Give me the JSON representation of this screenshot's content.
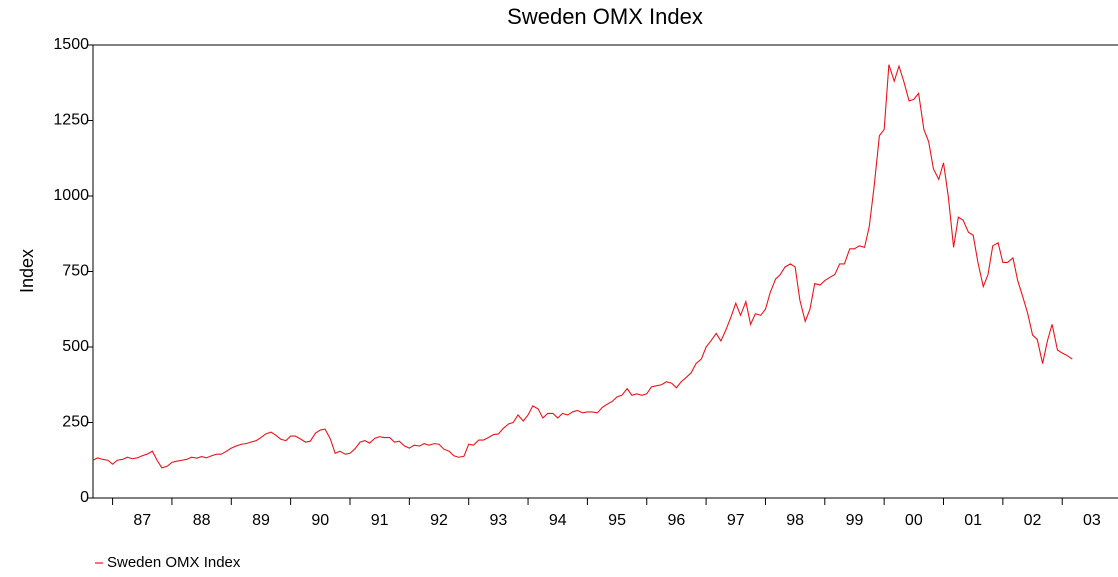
{
  "chart_data": {
    "type": "line",
    "title": "Sweden OMX Index",
    "y_label": "Index",
    "legend": "bottom-left",
    "grid": false,
    "xlim": [
      1986.67,
      2003.94
    ],
    "ylim": [
      0,
      1500
    ],
    "yticks": [
      0,
      250,
      500,
      750,
      1000,
      1250,
      1500
    ],
    "xticks": [
      {
        "value": 1987,
        "label": "87"
      },
      {
        "value": 1988,
        "label": "88"
      },
      {
        "value": 1989,
        "label": "89"
      },
      {
        "value": 1990,
        "label": "90"
      },
      {
        "value": 1991,
        "label": "91"
      },
      {
        "value": 1992,
        "label": "92"
      },
      {
        "value": 1993,
        "label": "93"
      },
      {
        "value": 1994,
        "label": "94"
      },
      {
        "value": 1995,
        "label": "95"
      },
      {
        "value": 1996,
        "label": "96"
      },
      {
        "value": 1997,
        "label": "97"
      },
      {
        "value": 1998,
        "label": "98"
      },
      {
        "value": 1999,
        "label": "99"
      },
      {
        "value": 2000,
        "label": "00"
      },
      {
        "value": 2001,
        "label": "01"
      },
      {
        "value": 2002,
        "label": "02"
      },
      {
        "value": 2003,
        "label": "03"
      }
    ],
    "x": [
      1986.67,
      1986.75,
      1986.83,
      1986.92,
      1987,
      1987.08,
      1987.17,
      1987.25,
      1987.33,
      1987.42,
      1987.5,
      1987.58,
      1987.67,
      1987.75,
      1987.83,
      1987.92,
      1988,
      1988.08,
      1988.17,
      1988.25,
      1988.33,
      1988.42,
      1988.5,
      1988.58,
      1988.67,
      1988.75,
      1988.83,
      1988.92,
      1989,
      1989.08,
      1989.17,
      1989.25,
      1989.33,
      1989.42,
      1989.5,
      1989.58,
      1989.67,
      1989.75,
      1989.83,
      1989.92,
      1990,
      1990.08,
      1990.17,
      1990.25,
      1990.33,
      1990.42,
      1990.5,
      1990.58,
      1990.67,
      1990.75,
      1990.83,
      1990.92,
      1991,
      1991.08,
      1991.17,
      1991.25,
      1991.33,
      1991.42,
      1991.5,
      1991.58,
      1991.67,
      1991.75,
      1991.83,
      1991.92,
      1992,
      1992.08,
      1992.17,
      1992.25,
      1992.33,
      1992.42,
      1992.5,
      1992.58,
      1992.67,
      1992.75,
      1992.83,
      1992.92,
      1993,
      1993.08,
      1993.17,
      1993.25,
      1993.33,
      1993.42,
      1993.5,
      1993.58,
      1993.67,
      1993.75,
      1993.83,
      1993.92,
      1994,
      1994.08,
      1994.17,
      1994.25,
      1994.33,
      1994.42,
      1994.5,
      1994.58,
      1994.67,
      1994.75,
      1994.83,
      1994.92,
      1995,
      1995.08,
      1995.17,
      1995.25,
      1995.33,
      1995.42,
      1995.5,
      1995.58,
      1995.67,
      1995.75,
      1995.83,
      1995.92,
      1996,
      1996.08,
      1996.17,
      1996.25,
      1996.33,
      1996.42,
      1996.5,
      1996.58,
      1996.67,
      1996.75,
      1996.83,
      1996.92,
      1997,
      1997.08,
      1997.17,
      1997.25,
      1997.33,
      1997.42,
      1997.5,
      1997.58,
      1997.67,
      1997.75,
      1997.83,
      1997.92,
      1998,
      1998.08,
      1998.17,
      1998.25,
      1998.33,
      1998.42,
      1998.5,
      1998.58,
      1998.67,
      1998.75,
      1998.83,
      1998.92,
      1999,
      1999.08,
      1999.17,
      1999.25,
      1999.33,
      1999.42,
      1999.5,
      1999.58,
      1999.67,
      1999.75,
      1999.83,
      1999.92,
      2000,
      2000.08,
      2000.17,
      2000.25,
      2000.33,
      2000.42,
      2000.5,
      2000.58,
      2000.67,
      2000.75,
      2000.83,
      2000.92,
      2001,
      2001.08,
      2001.17,
      2001.25,
      2001.33,
      2001.42,
      2001.5,
      2001.58,
      2001.67,
      2001.75,
      2001.83,
      2001.92,
      2002,
      2002.08,
      2002.17,
      2002.25,
      2002.33,
      2002.42,
      2002.5,
      2002.58,
      2002.67,
      2002.75,
      2002.83,
      2002.92,
      2003,
      2003.08,
      2003.17
    ],
    "series": [
      {
        "name": "Sweden OMX Index",
        "color": "#e8141c",
        "values": [
          125,
          133,
          128,
          125,
          112,
          125,
          128,
          135,
          130,
          133,
          140,
          145,
          155,
          125,
          100,
          105,
          118,
          122,
          125,
          128,
          135,
          132,
          137,
          133,
          140,
          145,
          145,
          155,
          165,
          172,
          178,
          180,
          185,
          190,
          200,
          212,
          218,
          208,
          195,
          190,
          205,
          205,
          195,
          185,
          188,
          215,
          225,
          228,
          195,
          148,
          155,
          145,
          148,
          162,
          185,
          190,
          182,
          198,
          203,
          200,
          200,
          185,
          188,
          172,
          165,
          175,
          172,
          180,
          175,
          180,
          178,
          162,
          155,
          140,
          135,
          138,
          178,
          175,
          192,
          192,
          200,
          210,
          212,
          230,
          245,
          250,
          275,
          255,
          275,
          305,
          295,
          265,
          280,
          280,
          265,
          280,
          275,
          285,
          290,
          282,
          285,
          285,
          282,
          300,
          310,
          320,
          335,
          340,
          362,
          340,
          345,
          340,
          345,
          368,
          372,
          375,
          385,
          380,
          365,
          385,
          400,
          415,
          445,
          460,
          500,
          520,
          545,
          520,
          555,
          600,
          645,
          605,
          650,
          575,
          610,
          605,
          625,
          680,
          725,
          740,
          765,
          775,
          765,
          655,
          585,
          625,
          710,
          705,
          720,
          730,
          740,
          775,
          775,
          825,
          825,
          835,
          830,
          900,
          1030,
          1200,
          1220,
          1435,
          1380,
          1430,
          1380,
          1315,
          1320,
          1340,
          1220,
          1180,
          1090,
          1055,
          1110,
          1000,
          830,
          930,
          920,
          880,
          870,
          780,
          700,
          740,
          835,
          845,
          780,
          780,
          795,
          720,
          670,
          610,
          540,
          525,
          445,
          520,
          575,
          490,
          480,
          472,
          460
        ]
      }
    ]
  }
}
